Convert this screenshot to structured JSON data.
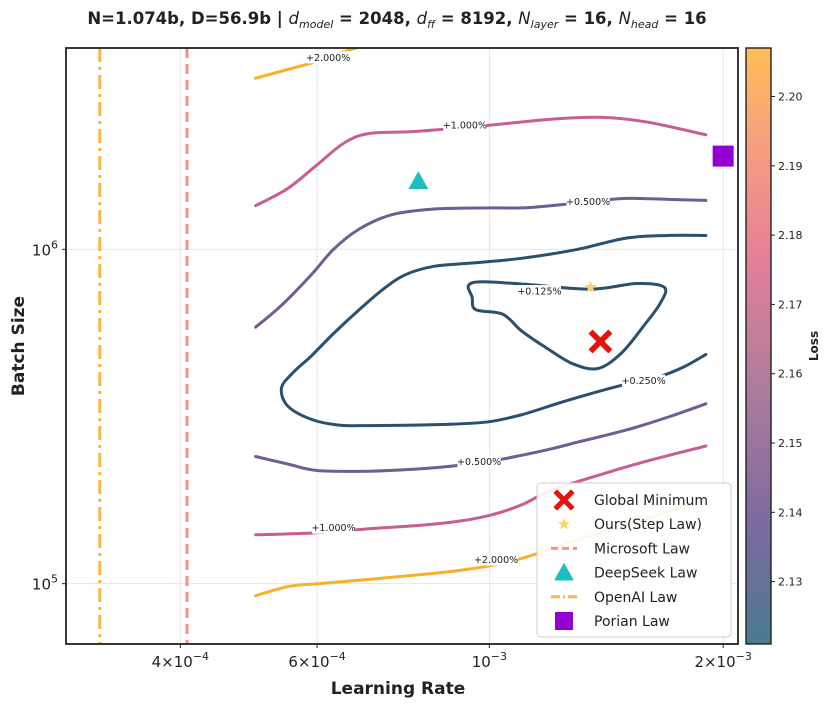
{
  "chart_data": {
    "type": "contour",
    "title": {
      "prefix": "N=1.074b, D=56.9b | ",
      "d_model_value": "2048",
      "d_ff_value": "8192",
      "n_layer_value": "16",
      "n_head_value": "16"
    },
    "xlabel": "Learning Rate",
    "ylabel": "Batch Size",
    "x_scale": "log",
    "y_scale": "log",
    "xlim": [
      0.000285,
      0.00209
    ],
    "ylim": [
      66000,
      4000000
    ],
    "x_ticks": [
      {
        "value": 0.0004,
        "mantissa": "4×10",
        "exp": "−4"
      },
      {
        "value": 0.0006,
        "mantissa": "6×10",
        "exp": "−4"
      },
      {
        "value": 0.001,
        "mantissa": "10",
        "exp": "−3"
      },
      {
        "value": 0.002,
        "mantissa": "2×10",
        "exp": "−3"
      }
    ],
    "y_ticks": [
      {
        "value": 100000,
        "mantissa": "10",
        "exp": "5"
      },
      {
        "value": 1000000,
        "mantissa": "10",
        "exp": "6"
      }
    ],
    "grid": true,
    "colorbar": {
      "label": "Loss",
      "min": 2.121,
      "max": 2.207,
      "ticks": [
        "2.13",
        "2.14",
        "2.15",
        "2.16",
        "2.17",
        "2.18",
        "2.19",
        "2.20"
      ],
      "tick_values": [
        2.13,
        2.14,
        2.15,
        2.16,
        2.17,
        2.18,
        2.19,
        2.2
      ],
      "colors": [
        "#4a7a90",
        "#7b6aa0",
        "#b27d9c",
        "#e67f98",
        "#f7a17c",
        "#ffbe55"
      ]
    },
    "contours": [
      {
        "level": "+0.125%",
        "color": "#2b4f6e",
        "closed": true,
        "points": [
          [
            0.00095,
            720000
          ],
          [
            0.00094,
            780000
          ],
          [
            0.00098,
            800000
          ],
          [
            0.00112,
            785000
          ],
          [
            0.00135,
            760000
          ],
          [
            0.00155,
            790000
          ],
          [
            0.00168,
            770000
          ],
          [
            0.00166,
            690000
          ],
          [
            0.00158,
            590000
          ],
          [
            0.00148,
            490000
          ],
          [
            0.00138,
            440000
          ],
          [
            0.00128,
            455000
          ],
          [
            0.00118,
            510000
          ],
          [
            0.0011,
            570000
          ],
          [
            0.00104,
            640000
          ],
          [
            0.00096,
            660000
          ]
        ],
        "label": {
          "x": 0.00116,
          "y": 750000
        }
      },
      {
        "level": "+0.250%",
        "color": "#2b4f6e",
        "closed": false,
        "points": [
          [
            0.0019,
            485000
          ],
          [
            0.00178,
            445000
          ],
          [
            0.00165,
            415000
          ],
          [
            0.0015,
            395000
          ],
          [
            0.00135,
            370000
          ],
          [
            0.00122,
            345000
          ],
          [
            0.0011,
            320000
          ],
          [
            0.001,
            305000
          ],
          [
            0.0009,
            300000
          ],
          [
            0.0008,
            298000
          ],
          [
            0.0007,
            297000
          ],
          [
            0.00064,
            298000
          ],
          [
            0.00059,
            310000
          ],
          [
            0.00055,
            340000
          ],
          [
            0.00054,
            385000
          ],
          [
            0.00056,
            430000
          ],
          [
            0.00059,
            480000
          ],
          [
            0.00063,
            560000
          ],
          [
            0.00068,
            660000
          ],
          [
            0.00073,
            760000
          ],
          [
            0.00078,
            840000
          ],
          [
            0.00085,
            890000
          ],
          [
            0.00095,
            910000
          ],
          [
            0.0011,
            940000
          ],
          [
            0.0013,
            1000000
          ],
          [
            0.0015,
            1080000
          ],
          [
            0.0017,
            1100000
          ],
          [
            0.0019,
            1100000
          ]
        ],
        "label": {
          "x": 0.00158,
          "y": 405000
        }
      },
      {
        "level": "+0.500%",
        "color": "#6d5e93",
        "closed": false,
        "points": [
          [
            0.0005,
            585000
          ],
          [
            0.00054,
            680000
          ],
          [
            0.00059,
            840000
          ],
          [
            0.00063,
            1000000
          ],
          [
            0.00068,
            1150000
          ],
          [
            0.00075,
            1270000
          ],
          [
            0.00085,
            1320000
          ],
          [
            0.001,
            1330000
          ],
          [
            0.0011,
            1330000
          ],
          [
            0.0012,
            1350000
          ],
          [
            0.00135,
            1390000
          ],
          [
            0.0015,
            1420000
          ],
          [
            0.0017,
            1410000
          ],
          [
            0.0019,
            1400000
          ]
        ],
        "label": {
          "x": 0.00134,
          "y": 1390000
        }
      },
      {
        "level": "+0.500%",
        "color": "#6d5e93",
        "closed": false,
        "points": [
          [
            0.0005,
            240000
          ],
          [
            0.00055,
            228000
          ],
          [
            0.0006,
            218000
          ],
          [
            0.0007,
            217000
          ],
          [
            0.0008,
            220000
          ],
          [
            0.0009,
            225000
          ],
          [
            0.001,
            232000
          ],
          [
            0.0011,
            242000
          ],
          [
            0.0012,
            253000
          ],
          [
            0.0013,
            265000
          ],
          [
            0.0015,
            288000
          ],
          [
            0.0017,
            315000
          ],
          [
            0.0019,
            345000
          ]
        ],
        "label": {
          "x": 0.00097,
          "y": 232000
        }
      },
      {
        "level": "+1.000%",
        "color": "#c75e92",
        "closed": false,
        "points": [
          [
            0.0005,
            1350000
          ],
          [
            0.00055,
            1520000
          ],
          [
            0.0006,
            1790000
          ],
          [
            0.00065,
            2080000
          ],
          [
            0.0007,
            2220000
          ],
          [
            0.0008,
            2250000
          ],
          [
            0.001,
            2350000
          ],
          [
            0.0012,
            2450000
          ],
          [
            0.0014,
            2480000
          ],
          [
            0.0016,
            2400000
          ],
          [
            0.0019,
            2200000
          ]
        ],
        "label": {
          "x": 0.00093,
          "y": 2350000
        }
      },
      {
        "level": "+1.000%",
        "color": "#c75e92",
        "closed": false,
        "points": [
          [
            0.0005,
            140000
          ],
          [
            0.0006,
            142000
          ],
          [
            0.0007,
            146000
          ],
          [
            0.0008,
            149000
          ],
          [
            0.0009,
            153000
          ],
          [
            0.001,
            160000
          ],
          [
            0.0011,
            172000
          ],
          [
            0.0012,
            190000
          ],
          [
            0.0014,
            213000
          ],
          [
            0.0016,
            233000
          ],
          [
            0.0019,
            258000
          ]
        ],
        "label": {
          "x": 0.00063,
          "y": 147000
        }
      },
      {
        "level": "+2.000%",
        "color": "#f6b128",
        "closed": false,
        "points": [
          [
            0.0005,
            3250000
          ],
          [
            0.00055,
            3450000
          ],
          [
            0.0006,
            3650000
          ],
          [
            0.00065,
            3900000
          ],
          [
            0.0007,
            4100000
          ],
          [
            0.00075,
            4250000
          ]
        ],
        "label": {
          "x": 0.00062,
          "y": 3750000
        }
      },
      {
        "level": "+2.000%",
        "color": "#f6b128",
        "closed": false,
        "points": [
          [
            0.0005,
            92000
          ],
          [
            0.00055,
            98000
          ],
          [
            0.0006,
            100000
          ],
          [
            0.0007,
            103000
          ],
          [
            0.0008,
            106000
          ],
          [
            0.0009,
            109000
          ],
          [
            0.001,
            113000
          ],
          [
            0.0011,
            119000
          ],
          [
            0.0012,
            127000
          ],
          [
            0.0013,
            135000
          ],
          [
            0.0015,
            150000
          ],
          [
            0.0017,
            164000
          ],
          [
            0.0019,
            178000
          ]
        ],
        "label": {
          "x": 0.00102,
          "y": 118000
        }
      }
    ],
    "points": [
      {
        "name": "Global Minimum",
        "x": 0.00139,
        "y": 530000,
        "marker": "x",
        "color": "#e8120c"
      },
      {
        "name": "Ours(Step Law)",
        "x": 0.00135,
        "y": 770000,
        "marker": "star",
        "color": "#fcd466"
      },
      {
        "name": "DeepSeek Law",
        "x": 0.00081,
        "y": 1600000,
        "marker": "triangle",
        "color": "#1abfbe"
      },
      {
        "name": "Porian Law",
        "x": 0.002,
        "y": 1900000,
        "marker": "square",
        "color": "#9400d3"
      }
    ],
    "vlines": [
      {
        "name": "Microsoft Law",
        "x": 0.000408,
        "color": "#fa8f82",
        "style": "dashed"
      },
      {
        "name": "OpenAI Law",
        "x": 0.000315,
        "color": "#f6b84b",
        "style": "dashdot"
      }
    ],
    "legend": {
      "location": "lower-right",
      "entries": [
        {
          "label": "Global Minimum",
          "marker": "x",
          "color": "#e8120c"
        },
        {
          "label": "Ours(Step Law)",
          "marker": "star",
          "color": "#fcd466"
        },
        {
          "label": "Microsoft Law",
          "marker": "dashed",
          "color": "#fa8f82"
        },
        {
          "label": "DeepSeek Law",
          "marker": "triangle",
          "color": "#1abfbe"
        },
        {
          "label": "OpenAI Law",
          "marker": "dashdot",
          "color": "#f6b84b"
        },
        {
          "label": "Porian Law",
          "marker": "square",
          "color": "#9400d3"
        }
      ]
    }
  }
}
